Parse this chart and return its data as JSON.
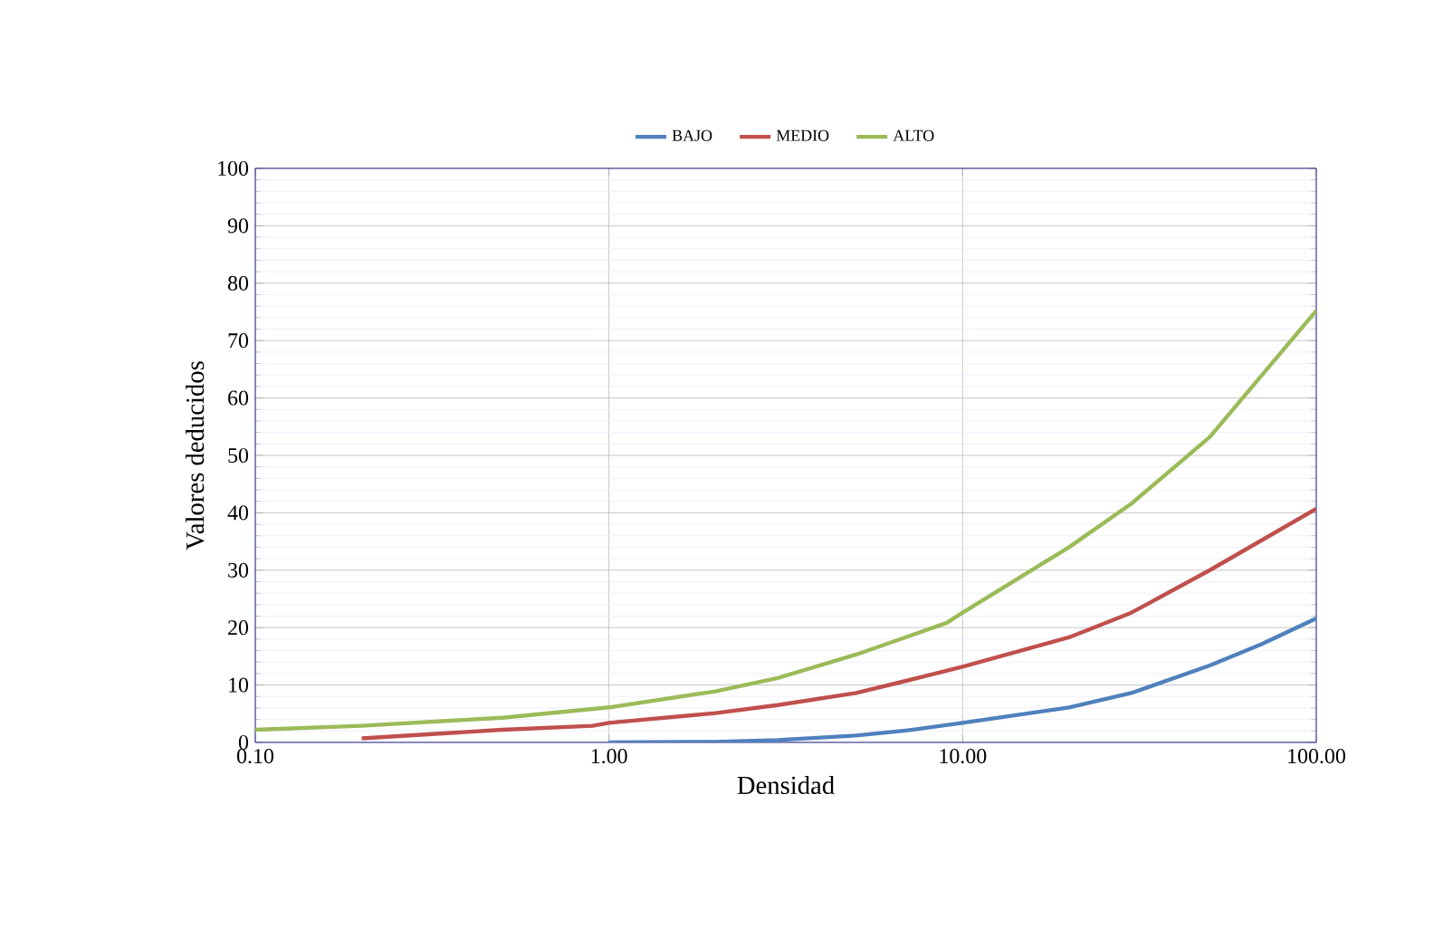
{
  "chart_data": {
    "type": "line",
    "xlabel": "Densidad",
    "ylabel": "Valores deducidos",
    "log": "x",
    "grid": true,
    "legend": "top",
    "marker": "none",
    "line_style": "solid",
    "xlim": [
      0.1,
      100
    ],
    "ylim": [
      0,
      100
    ],
    "xticks": [
      {
        "value": 0.1,
        "label": "0.10"
      },
      {
        "value": 1,
        "label": "1.00"
      },
      {
        "value": 10,
        "label": "10.00"
      },
      {
        "value": 100,
        "label": "100.00"
      }
    ],
    "yticks": [
      0,
      10,
      20,
      30,
      40,
      50,
      60,
      70,
      80,
      90,
      100
    ],
    "series": [
      {
        "name": "BAJO",
        "color": "#4f81bd",
        "x": [
          1,
          2,
          3,
          5,
          7,
          10,
          20,
          30,
          50,
          70,
          100
        ],
        "values": [
          0,
          0.1,
          0.4,
          1.2,
          2.1,
          3.4,
          6.1,
          8.6,
          13.4,
          17.1,
          21.6
        ]
      },
      {
        "name": "MEDIO",
        "color": "#c0504d",
        "x": [
          0.2,
          0.5,
          0.9,
          1,
          2,
          3,
          5,
          7,
          10,
          20,
          30,
          50,
          100
        ],
        "values": [
          0.7,
          2.2,
          2.9,
          3.4,
          5.1,
          6.5,
          8.6,
          10.8,
          13.2,
          18.3,
          22.6,
          30,
          40.7
        ]
      },
      {
        "name": "ALTO",
        "color": "#9bbb59",
        "x": [
          0.1,
          0.2,
          0.5,
          1,
          2,
          3,
          5,
          9,
          10,
          20,
          30,
          50,
          100
        ],
        "values": [
          2.2,
          2.9,
          4.3,
          6.1,
          8.9,
          11.2,
          15.3,
          20.8,
          22.6,
          34,
          41.6,
          53.2,
          75.2
        ]
      }
    ]
  }
}
